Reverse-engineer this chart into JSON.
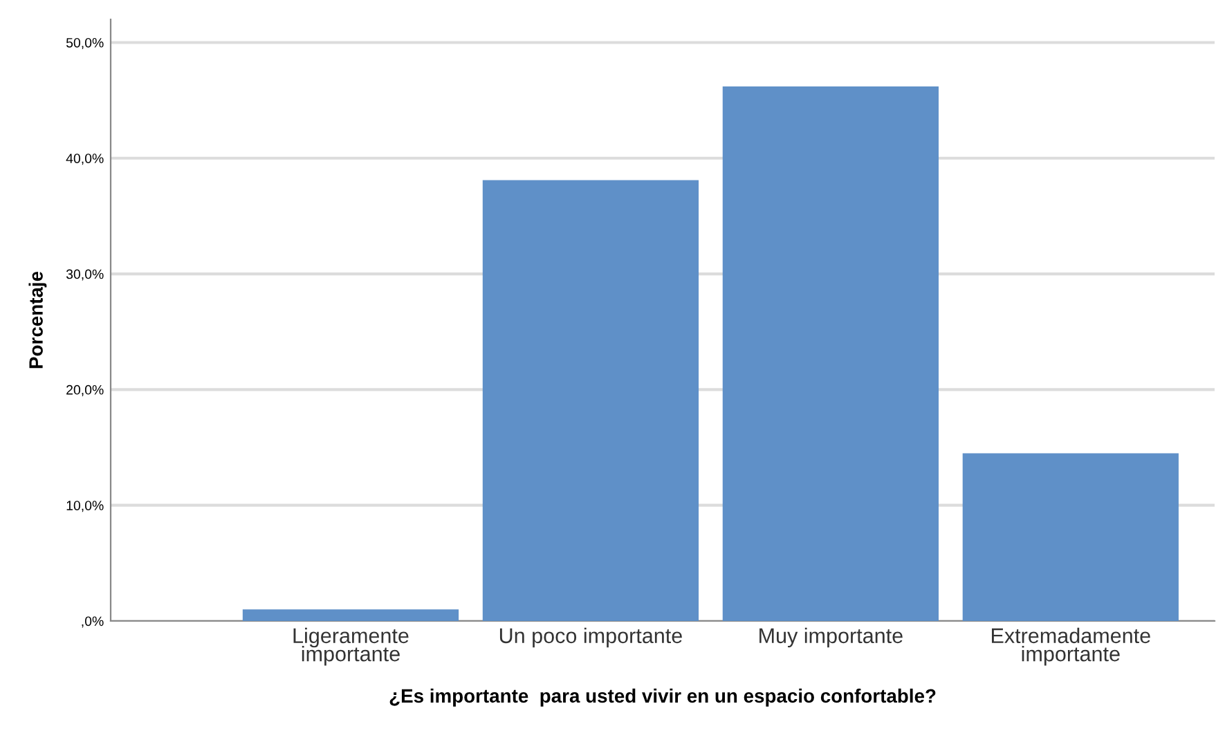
{
  "chart_data": {
    "type": "bar",
    "xlabel": "¿Es importante  para usted vivir en un espacio confortable?",
    "ylabel": "Porcentaje",
    "categories": [
      "Ligeramente\nimportante",
      "Un poco importante",
      "Muy importante",
      "Extremadamente\nimportante"
    ],
    "values": [
      1.0,
      38.1,
      46.2,
      14.5
    ],
    "color": "#5f90c8",
    "ylim": [
      0,
      52
    ],
    "yticks": [
      {
        "value": 0,
        "label": ",0%"
      },
      {
        "value": 10,
        "label": "10,0%"
      },
      {
        "value": 20,
        "label": "20,0%"
      },
      {
        "value": 30,
        "label": "30,0%"
      },
      {
        "value": 40,
        "label": "40,0%"
      },
      {
        "value": 50,
        "label": "50,0%"
      }
    ],
    "grid": "y"
  }
}
